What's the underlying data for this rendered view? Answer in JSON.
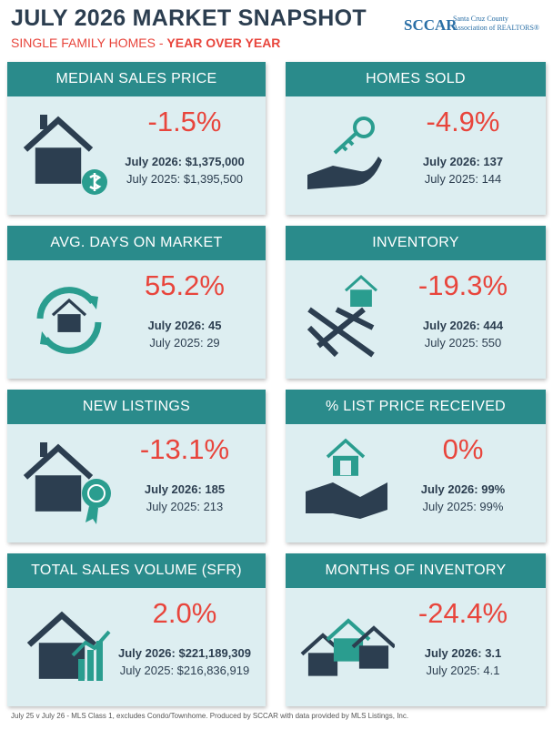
{
  "header": {
    "title": "JULY 2026 MARKET SNAPSHOT",
    "subtitle": "SINGLE FAMILY HOMES - ",
    "subtitle_emphasis": "YEAR OVER YEAR",
    "logo": "SCCAR",
    "logo_text": "Santa Cruz County Association of REALTORS®"
  },
  "cards": [
    {
      "title": "MEDIAN SALES PRICE",
      "change": "-1.5%",
      "current": "July 2026: $1,375,000",
      "previous": "July 2025: $1,395,500"
    },
    {
      "title": "HOMES SOLD",
      "change": "-4.9%",
      "current": "July 2026: 137",
      "previous": "July 2025: 144"
    },
    {
      "title": "AVG. DAYS ON MARKET",
      "change": "55.2%",
      "current": "July 2026: 45",
      "previous": "July 2025: 29"
    },
    {
      "title": "INVENTORY",
      "change": "-19.3%",
      "current": "July 2026: 444",
      "previous": "July 2025: 550"
    },
    {
      "title": "NEW LISTINGS",
      "change": "-13.1%",
      "current": "July 2026: 185",
      "previous": "July 2025: 213"
    },
    {
      "title": "% LIST PRICE RECEIVED",
      "change": "0%",
      "current": "July 2026: 99%",
      "previous": "July 2025: 99%"
    },
    {
      "title": "TOTAL SALES VOLUME (SFR)",
      "change": "2.0%",
      "current": "July 2026: $221,189,309",
      "previous": "July 2025: $216,836,919"
    },
    {
      "title": "MONTHS OF INVENTORY",
      "change": "-24.4%",
      "current": "July 2026: 3.1",
      "previous": "July 2025: 4.1"
    }
  ],
  "footer": "July 25  v  July 26 - MLS Class 1, excludes Condo/Townhome. Produced by SCCAR with data provided by MLS Listings, Inc."
}
